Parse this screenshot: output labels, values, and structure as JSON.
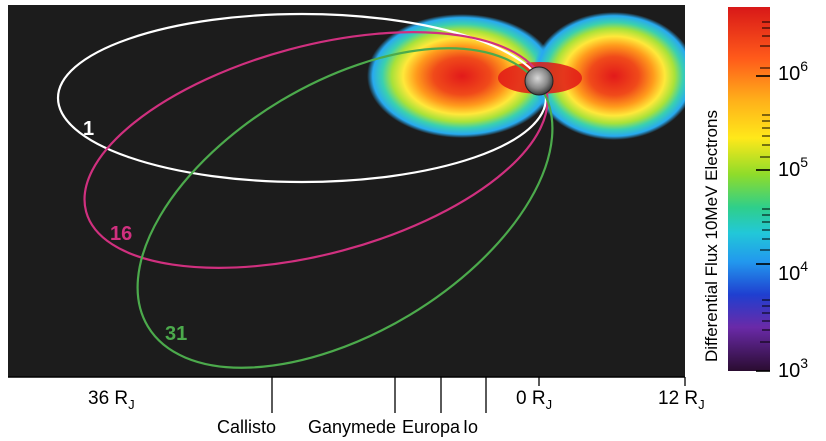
{
  "orbits": [
    {
      "label": "1",
      "color": "#ffffff"
    },
    {
      "label": "16",
      "color": "#d0307f"
    },
    {
      "label": "31",
      "color": "#4caa4c"
    }
  ],
  "scale": {
    "left": {
      "value": "36 R",
      "sub": "J"
    },
    "center": {
      "value": "0 R",
      "sub": "J"
    },
    "right": {
      "value": "12 R",
      "sub": "J"
    }
  },
  "moons": [
    "Callisto",
    "Ganymede",
    "Europa",
    "Io"
  ],
  "colorbar": {
    "title": "Differential Flux 10MeV Electrons",
    "ticks": [
      {
        "base": "10",
        "exp": "6"
      },
      {
        "base": "10",
        "exp": "5"
      },
      {
        "base": "10",
        "exp": "4"
      },
      {
        "base": "10",
        "exp": "3"
      }
    ]
  },
  "colors": {
    "background": "#1c1c1c",
    "colorbar_stops": [
      "#e02020",
      "#ff8a1a",
      "#ffe81a",
      "#8fdc2a",
      "#2fd0a6",
      "#22a8ee",
      "#1f3fd0",
      "#7a2aa0",
      "#3a1040"
    ]
  }
}
